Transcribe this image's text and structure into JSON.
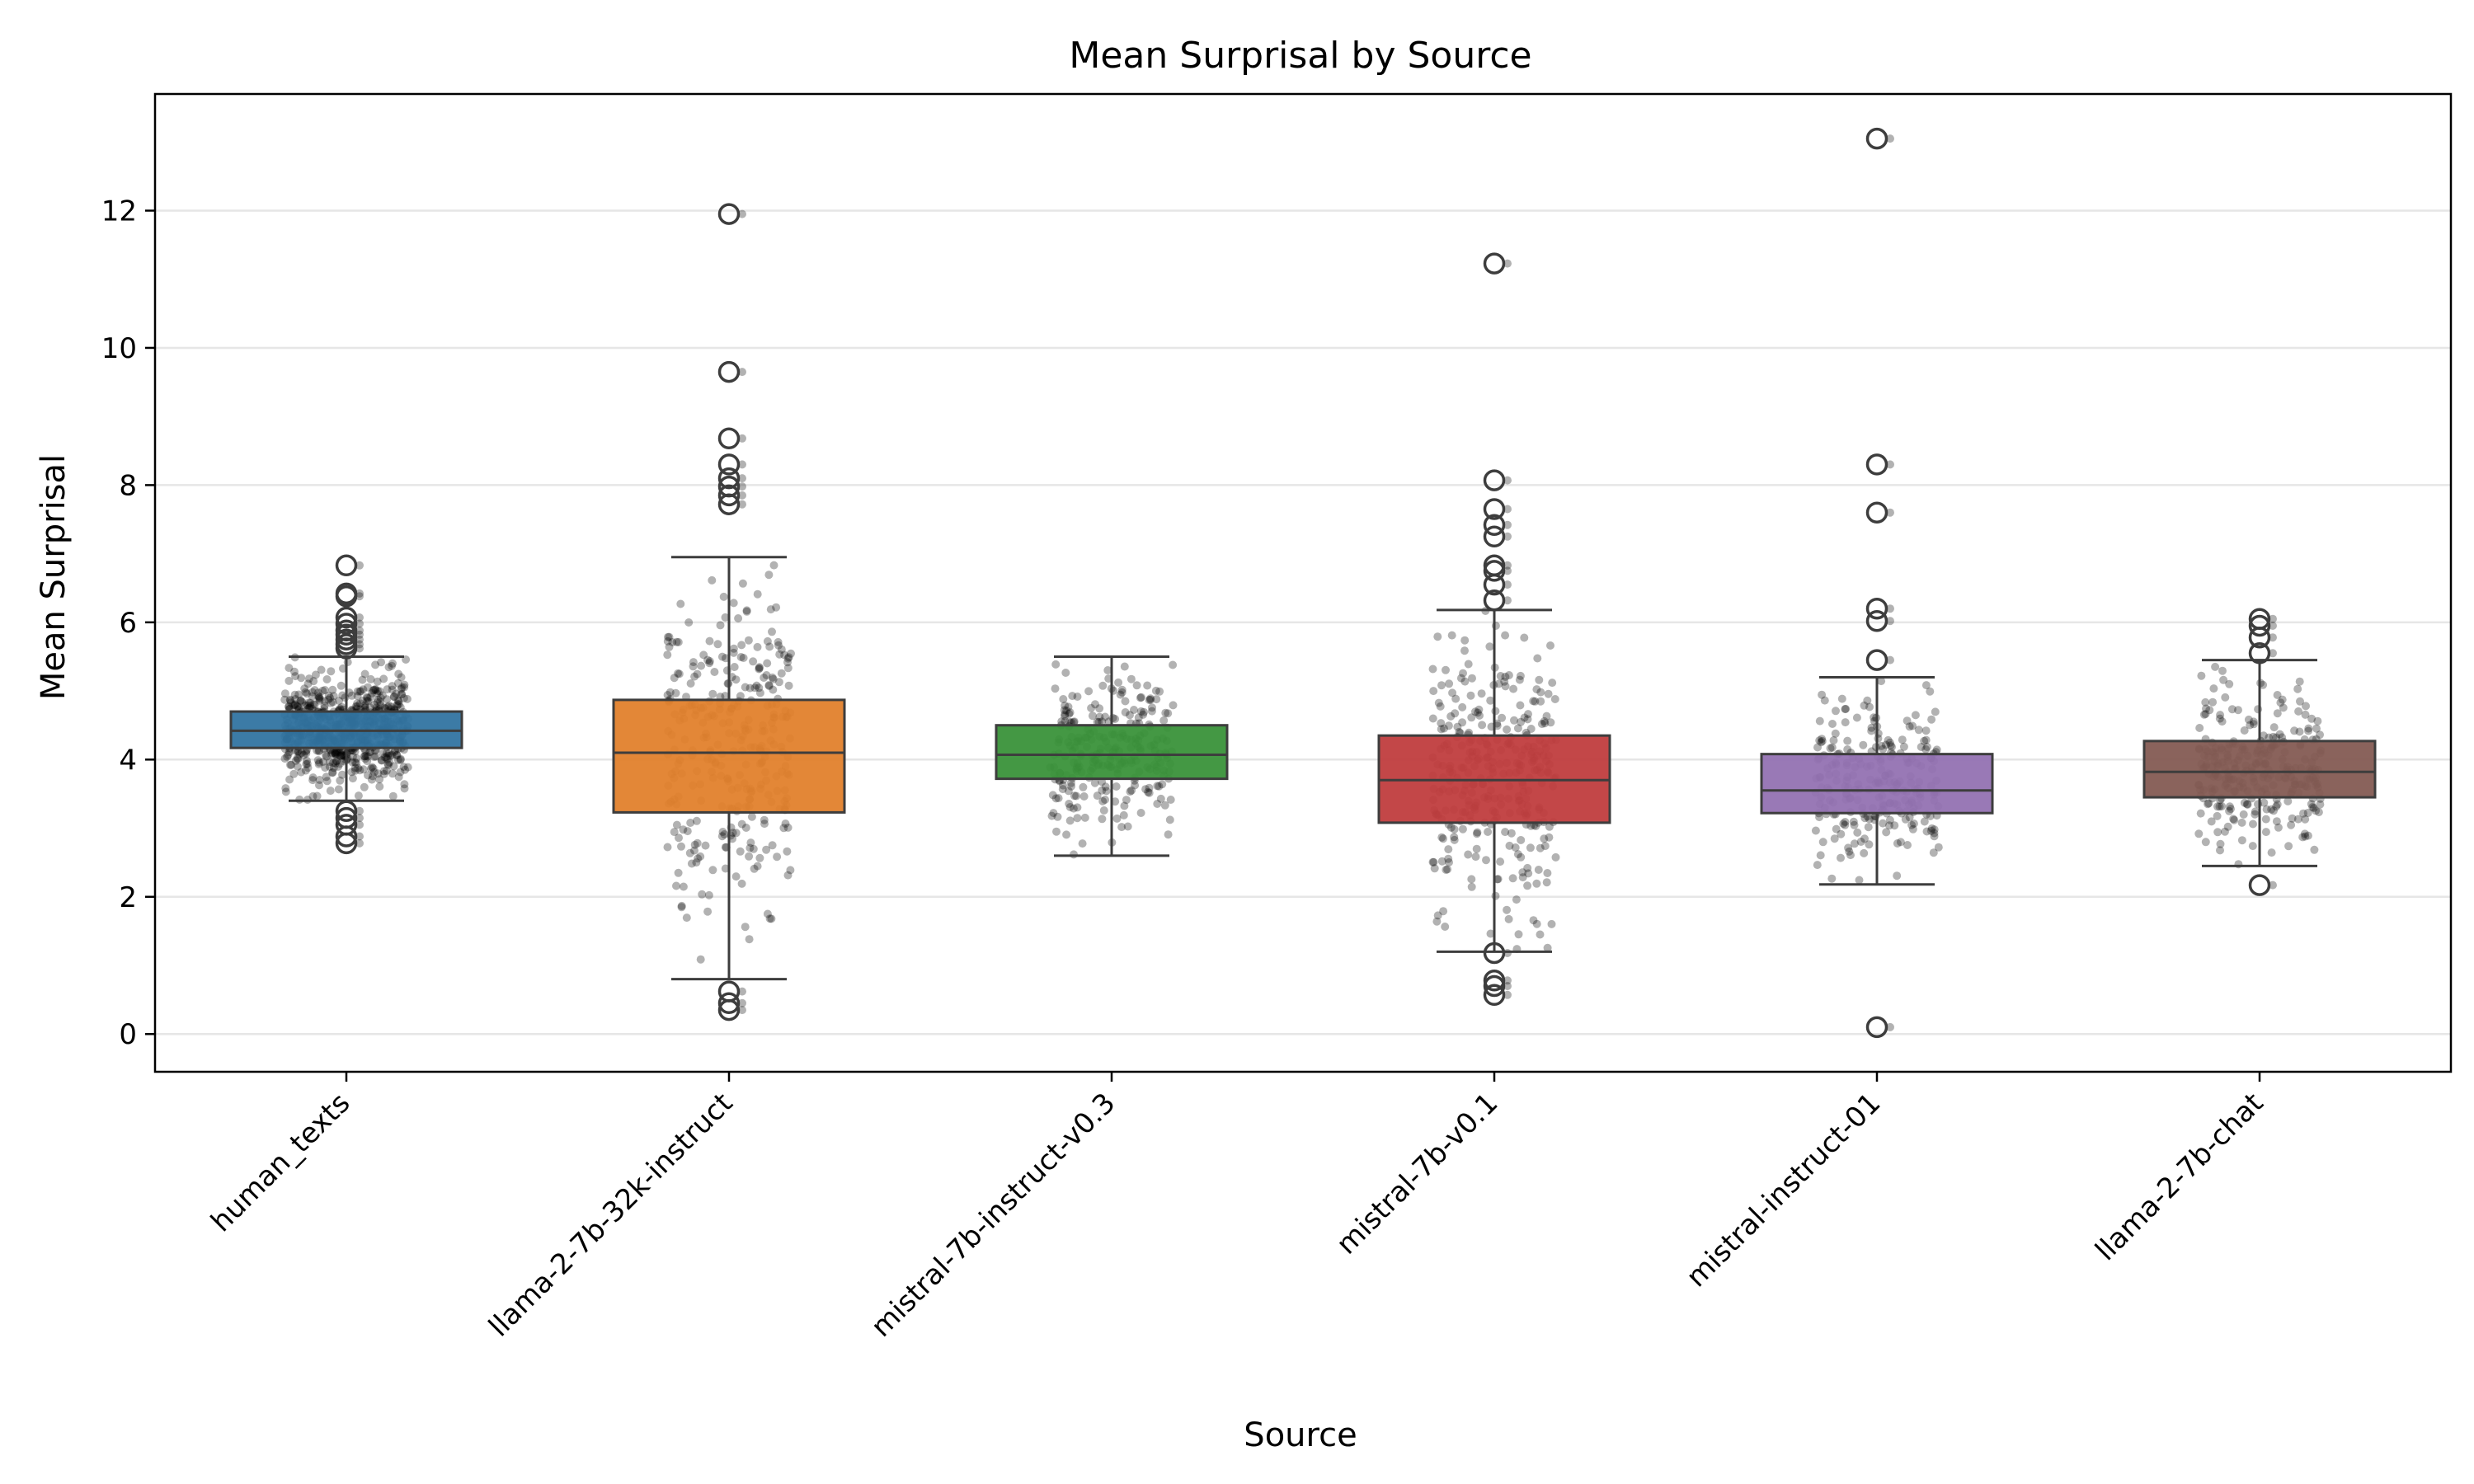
{
  "chart_data": {
    "type": "box",
    "title": "Mean Surprisal by Source",
    "xlabel": "Source",
    "ylabel": "Mean Surprisal",
    "ylim": [
      -0.55,
      13.7
    ],
    "yticks": [
      0,
      2,
      4,
      6,
      8,
      10,
      12
    ],
    "grid": "horizontal",
    "colors": {
      "human_texts": "#3274a1",
      "llama-2-7b-32k-instruct": "#e1812c",
      "mistral-7b-instruct-v0.3": "#3a923a",
      "mistral-7b-v0.1": "#c03d3e",
      "mistral-instruct-01": "#9372b2",
      "llama-2-7b-chat": "#845b53"
    },
    "categories": [
      "human_texts",
      "llama-2-7b-32k-instruct",
      "mistral-7b-instruct-v0.3",
      "mistral-7b-v0.1",
      "mistral-instruct-01",
      "llama-2-7b-chat"
    ],
    "boxes": [
      {
        "category": "human_texts",
        "whisker_low": 3.4,
        "q1": 4.17,
        "median": 4.42,
        "q3": 4.7,
        "whisker_high": 5.5,
        "fliers": [
          6.83,
          6.42,
          6.38,
          6.07,
          5.98,
          5.88,
          5.82,
          5.75,
          5.68,
          5.62,
          3.25,
          3.15,
          3.05,
          2.88,
          2.78
        ]
      },
      {
        "category": "llama-2-7b-32k-instruct",
        "whisker_low": 0.8,
        "q1": 3.23,
        "median": 4.1,
        "q3": 4.87,
        "whisker_high": 6.95,
        "fliers": [
          11.95,
          9.65,
          8.68,
          8.3,
          8.1,
          7.98,
          7.85,
          7.72,
          0.62,
          0.45,
          0.35
        ]
      },
      {
        "category": "mistral-7b-instruct-v0.3",
        "whisker_low": 2.6,
        "q1": 3.72,
        "median": 4.07,
        "q3": 4.5,
        "whisker_high": 5.5,
        "fliers": []
      },
      {
        "category": "mistral-7b-v0.1",
        "whisker_low": 1.2,
        "q1": 3.08,
        "median": 3.7,
        "q3": 4.35,
        "whisker_high": 6.18,
        "fliers": [
          11.23,
          8.07,
          7.65,
          7.42,
          7.25,
          6.83,
          6.75,
          6.55,
          6.32,
          1.18,
          0.78,
          0.7,
          0.57
        ]
      },
      {
        "category": "mistral-instruct-01",
        "whisker_low": 2.18,
        "q1": 3.22,
        "median": 3.55,
        "q3": 4.08,
        "whisker_high": 5.2,
        "fliers": [
          13.05,
          8.3,
          7.6,
          6.2,
          6.02,
          5.45,
          0.1
        ]
      },
      {
        "category": "llama-2-7b-chat",
        "whisker_low": 2.45,
        "q1": 3.45,
        "median": 3.82,
        "q3": 4.27,
        "whisker_high": 5.45,
        "fliers": [
          6.05,
          5.95,
          5.78,
          5.55,
          2.17
        ]
      }
    ]
  }
}
